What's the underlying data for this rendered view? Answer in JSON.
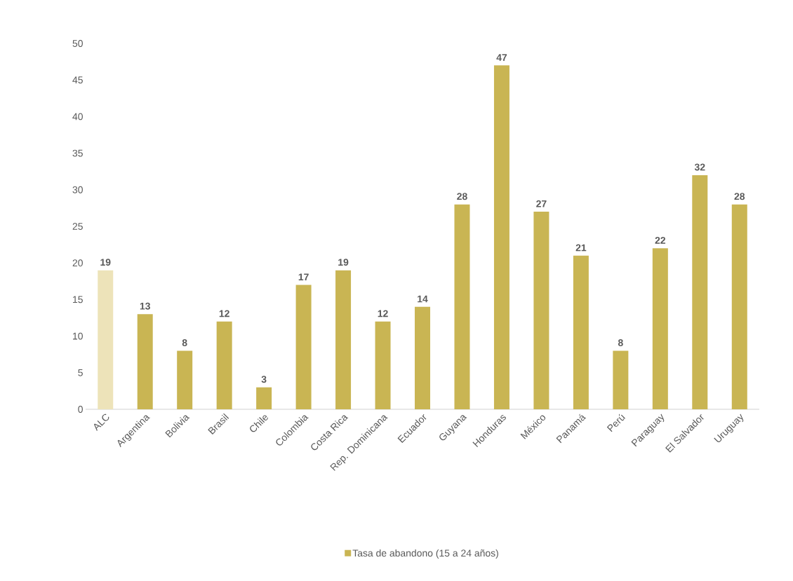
{
  "chart_data": {
    "type": "bar",
    "categories": [
      "ALC",
      "Argentina",
      "Bolivia",
      "Brasil",
      "Chile",
      "Colombia",
      "Costa Rica",
      "Rep. Dominicana",
      "Ecuador",
      "Guyana",
      "Honduras",
      "México",
      "Panamá",
      "Perú",
      "Paraguay",
      "El Salvador",
      "Uruguay"
    ],
    "series": [
      {
        "name": "Tasa de abandono (15 a 24 años)",
        "color": "#c9b553",
        "colors": [
          "#ede3b9",
          "#c9b553",
          "#c9b553",
          "#c9b553",
          "#c9b553",
          "#c9b553",
          "#c9b553",
          "#c9b553",
          "#c9b553",
          "#c9b553",
          "#c9b553",
          "#c9b553",
          "#c9b553",
          "#c9b553",
          "#c9b553",
          "#c9b553",
          "#c9b553"
        ],
        "values": [
          19,
          13,
          8,
          12,
          3,
          17,
          19,
          12,
          14,
          28,
          47,
          27,
          21,
          8,
          22,
          32,
          28
        ]
      }
    ],
    "ylim": [
      0,
      50
    ],
    "yticks": [
      0,
      5,
      10,
      15,
      20,
      25,
      30,
      35,
      40,
      45,
      50
    ],
    "data_labels": true,
    "legend": "bottom"
  }
}
